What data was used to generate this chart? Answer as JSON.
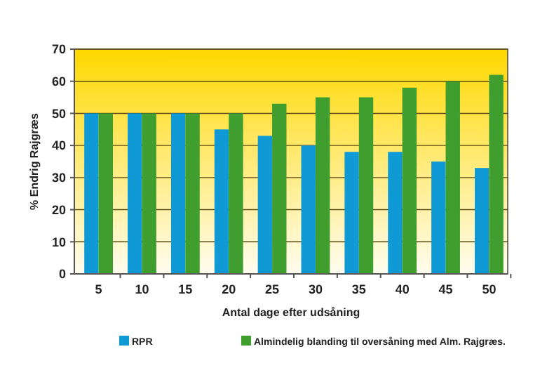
{
  "chart_data": {
    "type": "bar",
    "xlabel": "Antal dage efter udsåning",
    "ylabel": "% Endrig Rajgræs",
    "categories": [
      "5",
      "10",
      "15",
      "20",
      "25",
      "30",
      "35",
      "40",
      "45",
      "50"
    ],
    "series": [
      {
        "name": "RPR",
        "color": "#0f9ad6",
        "values": [
          50,
          50,
          50,
          45,
          43,
          40,
          38,
          38,
          35,
          33
        ]
      },
      {
        "name": "Almindelig blanding til oversåning med Alm. Rajgræs.",
        "color": "#3f9e2e",
        "values": [
          50,
          50,
          50,
          50,
          53,
          55,
          55,
          58,
          60,
          62
        ]
      }
    ],
    "ylim": [
      0,
      70
    ],
    "yticks": [
      0,
      10,
      20,
      30,
      40,
      50,
      60,
      70
    ],
    "grid": "y",
    "legend": "bottom"
  }
}
